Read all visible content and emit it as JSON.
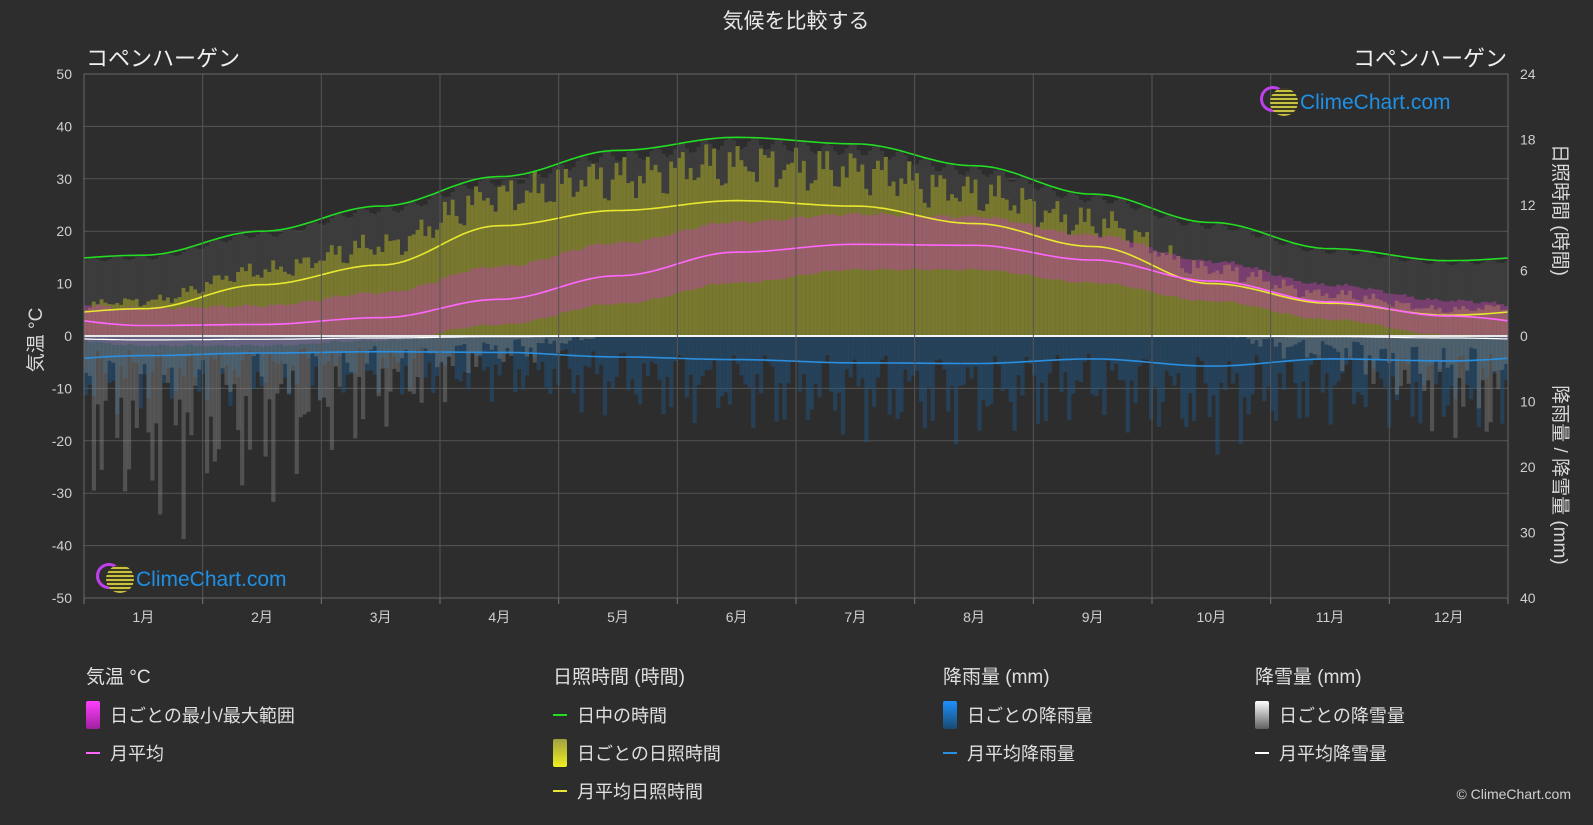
{
  "chart_data": {
    "type": "area",
    "title": "気候を比較する",
    "location_left": "コペンハーゲン",
    "location_right": "コペンハーゲン",
    "months": [
      "1月",
      "2月",
      "3月",
      "4月",
      "5月",
      "6月",
      "7月",
      "8月",
      "9月",
      "10月",
      "11月",
      "12月"
    ],
    "y_left": {
      "label": "気温 °C",
      "ticks": [
        50,
        40,
        30,
        20,
        10,
        0,
        -10,
        -20,
        -30,
        -40,
        -50
      ],
      "range": [
        -50,
        50
      ]
    },
    "y_right_top": {
      "label": "日照時間 (時間)",
      "ticks": [
        24,
        18,
        12,
        6,
        0
      ],
      "range": [
        0,
        24
      ]
    },
    "y_right_bottom": {
      "label": "降雨量 / 降雪量 (mm)",
      "ticks": [
        10,
        20,
        30,
        40
      ],
      "range": [
        0,
        40
      ]
    },
    "grid": true,
    "series": [
      {
        "name": "日中の時間",
        "unit": "hours",
        "color": "#22dd22",
        "values": [
          7.4,
          9.6,
          11.9,
          14.6,
          17.0,
          18.2,
          17.6,
          15.6,
          13.0,
          10.4,
          8.0,
          6.9
        ]
      },
      {
        "name": "月平均日照時間",
        "unit": "hours",
        "color": "#e8e830",
        "values": [
          2.5,
          4.7,
          6.5,
          10.1,
          11.5,
          12.4,
          11.9,
          10.3,
          8.2,
          4.8,
          3.0,
          1.9
        ]
      },
      {
        "name": "月平均",
        "unit": "°C",
        "color": "#ff66ff",
        "values": [
          2.0,
          2.2,
          3.5,
          7.0,
          11.5,
          16.0,
          17.5,
          17.3,
          14.5,
          10.5,
          6.5,
          3.8
        ]
      },
      {
        "name": "月平均降雨量",
        "unit": "mm",
        "color": "#2b8fe0",
        "values": [
          3.0,
          2.6,
          2.4,
          2.5,
          3.2,
          3.6,
          4.1,
          4.2,
          3.5,
          4.6,
          3.5,
          3.8
        ]
      },
      {
        "name": "月平均降雪量",
        "unit": "mm",
        "color": "#ffffff",
        "values": [
          0.6,
          0.5,
          0.3,
          0.1,
          0,
          0,
          0,
          0,
          0,
          0,
          0.1,
          0.3
        ]
      }
    ],
    "temp_range_daily": {
      "name": "日ごとの最小/最大範囲",
      "min": [
        -1.0,
        -1.0,
        0.0,
        3.0,
        7.0,
        11.0,
        13.5,
        13.5,
        11.0,
        7.5,
        4.0,
        1.0
      ],
      "max": [
        4.0,
        4.5,
        7.0,
        12.0,
        16.5,
        20.5,
        22.0,
        21.5,
        18.0,
        13.0,
        8.5,
        5.5
      ]
    }
  },
  "legend": {
    "temp": {
      "title": "気温 °C",
      "items": [
        "日ごとの最小/最大範囲",
        "月平均"
      ]
    },
    "sun": {
      "title": "日照時間 (時間)",
      "items": [
        "日中の時間",
        "日ごとの日照時間",
        "月平均日照時間"
      ]
    },
    "rain": {
      "title": "降雨量 (mm)",
      "items": [
        "日ごとの降雨量",
        "月平均降雨量"
      ]
    },
    "snow": {
      "title": "降雪量 (mm)",
      "items": [
        "日ごとの降雪量",
        "月平均降雪量"
      ]
    }
  },
  "watermark": "ClimeChart.com",
  "copyright": "© ClimeChart.com"
}
